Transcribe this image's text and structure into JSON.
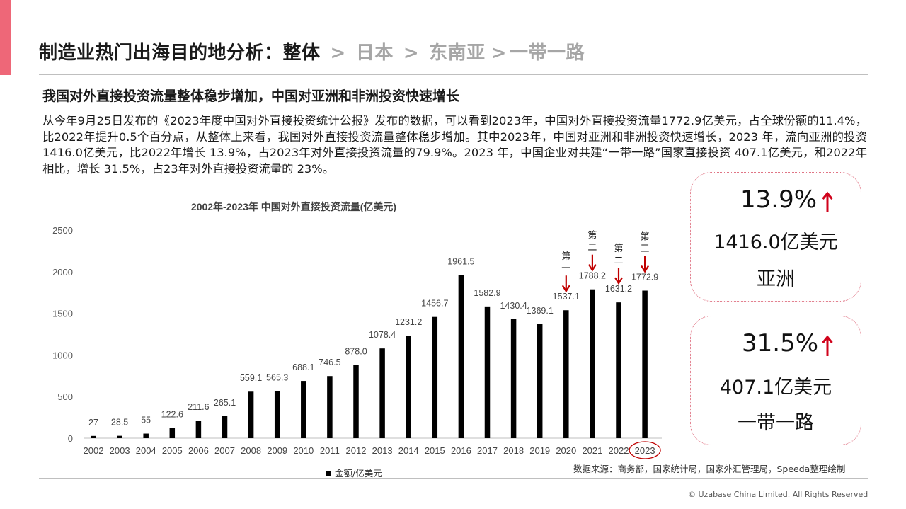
{
  "header": {
    "current": "制造业热门出海目的地分析：整体",
    "separator": ">",
    "crumbs": [
      "日本",
      "东南亚",
      "一带一路"
    ]
  },
  "subtitle": "我国对外直接投资流量整体稳步增加，中国对亚洲和非洲投资快速增长",
  "body_text": "从今年9月25日发布的《2023年度中国对外直接投资统计公报》发布的数据，可以看到2023年，中国对外直接投资流量1772.9亿美元，占全球份额的11.4%，比2022年提升0.5个百分点，从整体上来看，我国对外直接投资流量整体稳步增加。其中2023年，中国对亚洲和非洲投资快速增长，2023 年，流向亚洲的投资1416.0亿美元，比2022年增长 13.9%，占2023年对外直接投资流量的79.9%。2023 年，中国企业对共建“一带一路”国家直接投资 407.1亿美元，和2022年相比，增长 31.5%，占23年对外直接投资流量的 23%。",
  "chart_data": {
    "type": "bar",
    "title": "2002年-2023年 中国对外直接投资流量(亿美元)",
    "categories": [
      "2002",
      "2003",
      "2004",
      "2005",
      "2006",
      "2007",
      "2008",
      "2009",
      "2010",
      "2011",
      "2012",
      "2013",
      "2014",
      "2015",
      "2016",
      "2017",
      "2018",
      "2019",
      "2020",
      "2021",
      "2022",
      "2023"
    ],
    "series": [
      {
        "name": "金额/亿美元",
        "values": [
          27,
          28.5,
          55,
          122.6,
          211.6,
          265.1,
          559.1,
          565.3,
          688.1,
          746.5,
          878.0,
          1078.4,
          1231.2,
          1456.7,
          1961.5,
          1582.9,
          1430.4,
          1369.1,
          1537.1,
          1788.2,
          1631.2,
          1772.9
        ],
        "labels": [
          "27",
          "28.5",
          "55",
          "122.6",
          "211.6",
          "265.1",
          "559.1",
          "565.3",
          "688.1",
          "746.5",
          "878.0",
          "1078.4",
          "1231.2",
          "1456.7",
          "1961.5",
          "1582.9",
          "1430.4",
          "1369.1",
          "1537.1",
          "1788.2",
          "1631.2",
          "1772.9"
        ],
        "color": "#000000"
      }
    ],
    "ylim": [
      0,
      2500
    ],
    "yticks": [
      0,
      500,
      1000,
      1500,
      2000,
      2500
    ],
    "grid": false,
    "legend": "bottom",
    "annotations": [
      {
        "category": "2020",
        "text": "第一"
      },
      {
        "category": "2021",
        "text": "第二"
      },
      {
        "category": "2022",
        "text": "第二"
      },
      {
        "category": "2023",
        "text": "第三"
      }
    ],
    "highlight_category": "2023",
    "annotation_color": "#c00000"
  },
  "source": "数据来源：商务部，国家统计局，国家外汇管理局，Speeda整理绘制",
  "copyright": "© Uzabase China Limited. All Rights Reserved",
  "cards": [
    {
      "pct": "13.9%",
      "amount": "1416.0亿美元",
      "region": "亚洲"
    },
    {
      "pct": "31.5%",
      "amount": "407.1亿美元",
      "region": "一带一路"
    }
  ],
  "colors": {
    "accent": "#ee6778",
    "arrow": "#d0021b",
    "bar": "#000000",
    "card_border": "#e07585"
  }
}
